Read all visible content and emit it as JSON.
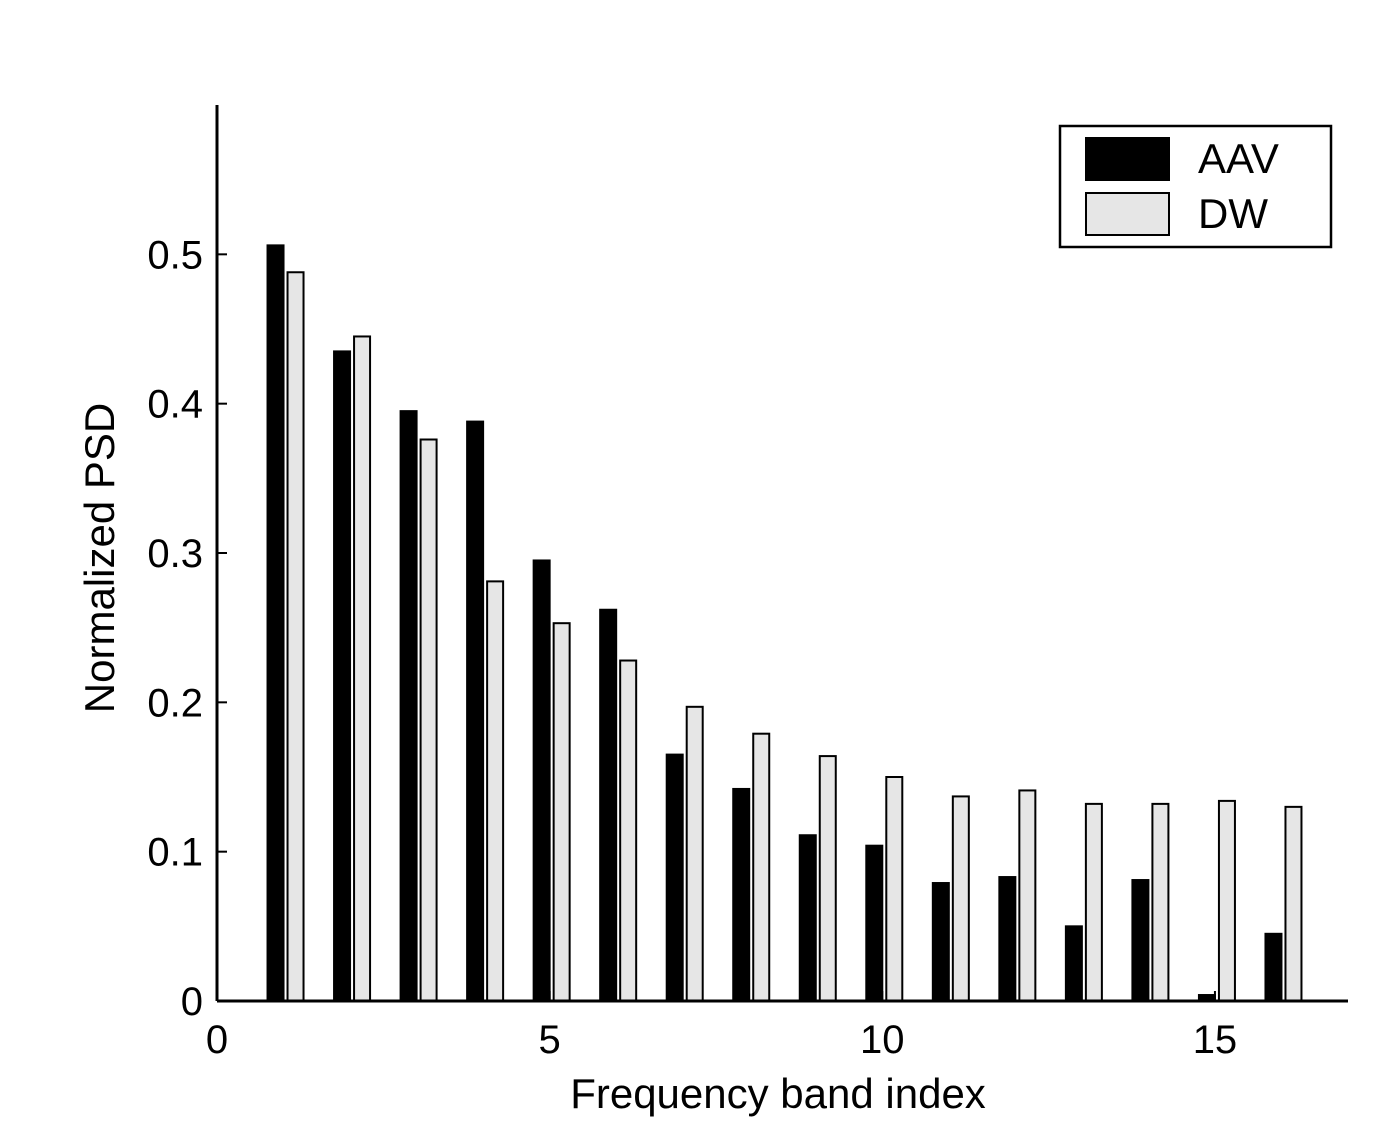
{
  "chart_data": {
    "type": "bar",
    "title": "",
    "xlabel": "Frequency band index",
    "ylabel": "Normalized PSD",
    "xlim": [
      0,
      17
    ],
    "ylim": [
      0,
      0.6
    ],
    "xticks": [
      0,
      5,
      10,
      15
    ],
    "yticks": [
      0,
      0.1,
      0.2,
      0.3,
      0.4,
      0.5
    ],
    "xtick_labels": [
      "0",
      "5",
      "10",
      "15"
    ],
    "ytick_labels": [
      "0",
      "0.1",
      "0.2",
      "0.3",
      "0.4",
      "0.5"
    ],
    "categories": [
      1,
      2,
      3,
      4,
      5,
      6,
      7,
      8,
      9,
      10,
      11,
      12,
      13,
      14,
      15,
      16
    ],
    "series": [
      {
        "name": "AAV",
        "color": "#000000",
        "values": [
          0.506,
          0.435,
          0.395,
          0.388,
          0.295,
          0.262,
          0.165,
          0.142,
          0.111,
          0.104,
          0.079,
          0.083,
          0.05,
          0.081,
          0.004,
          0.045
        ]
      },
      {
        "name": "DW",
        "color": "#e6e6e6",
        "values": [
          0.488,
          0.445,
          0.376,
          0.281,
          0.253,
          0.228,
          0.197,
          0.179,
          0.164,
          0.15,
          0.137,
          0.141,
          0.132,
          0.132,
          0.134,
          0.13
        ]
      }
    ],
    "legend": {
      "position": "top-right"
    },
    "grid": false
  }
}
